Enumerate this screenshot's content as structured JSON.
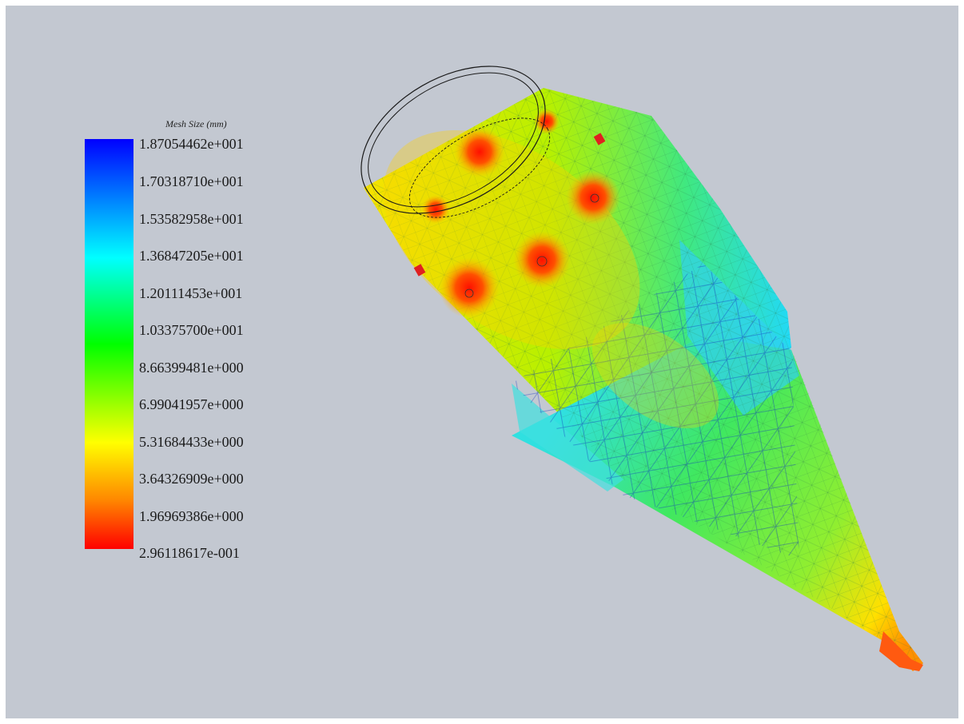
{
  "legend": {
    "title": "Mesh Size (mm)",
    "ticks": [
      "1.87054462e+001",
      "1.70318710e+001",
      "1.53582958e+001",
      "1.36847205e+001",
      "1.20111453e+001",
      "1.03375700e+001",
      "8.66399481e+000",
      "6.99041957e+000",
      "5.31684433e+000",
      "3.64326909e+000",
      "1.96969386e+000",
      "2.96118617e-001"
    ],
    "colors": [
      "#0000ff",
      "#00ffff",
      "#00ff00",
      "#ffff00",
      "#ff8800",
      "#ff0000"
    ]
  },
  "viewport": {
    "background": "#c3c8d1",
    "model": "mesh-size-plot-of-cyclone-body"
  }
}
